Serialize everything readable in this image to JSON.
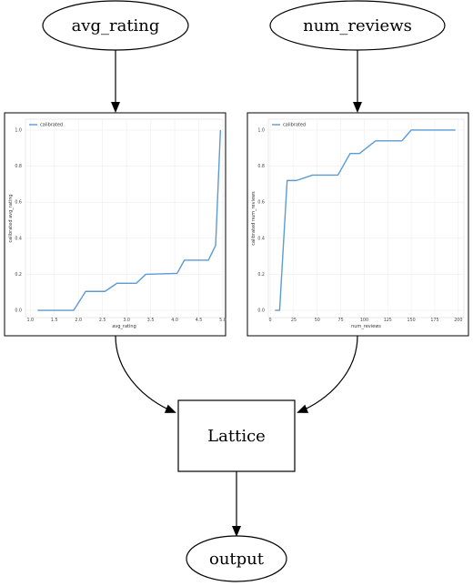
{
  "nodes": {
    "avg_rating": "avg_rating",
    "num_reviews": "num_reviews",
    "lattice": "Lattice",
    "output": "output"
  },
  "chart_data": [
    {
      "type": "line",
      "title": "",
      "xlabel": "avg_rating",
      "ylabel": "calibrated avg_rating",
      "xlim": [
        1.0,
        5.0
      ],
      "ylim": [
        0.0,
        1.0
      ],
      "xticks": [
        "1.0",
        "1.5",
        "2.0",
        "2.5",
        "3.0",
        "3.5",
        "4.0",
        "4.5",
        "5.0"
      ],
      "yticks": [
        "0.0",
        "0.2",
        "0.4",
        "0.6",
        "0.8",
        "1.0"
      ],
      "grid": true,
      "legend": "top-left",
      "series": [
        {
          "name": "calibrated",
          "color": "#5b9bd5",
          "x": [
            1.15,
            1.9,
            2.15,
            2.55,
            2.8,
            3.2,
            3.4,
            4.05,
            4.2,
            4.7,
            4.85,
            4.95
          ],
          "y": [
            0.0,
            0.0,
            0.105,
            0.105,
            0.15,
            0.15,
            0.2,
            0.205,
            0.278,
            0.278,
            0.36,
            1.0
          ]
        }
      ]
    },
    {
      "type": "line",
      "title": "",
      "xlabel": "num_reviews",
      "ylabel": "calibrated num_reviews",
      "xlim": [
        0,
        200
      ],
      "ylim": [
        0.0,
        1.0
      ],
      "xticks": [
        "0",
        "25",
        "50",
        "75",
        "100",
        "125",
        "150",
        "175",
        "200"
      ],
      "yticks": [
        "0.0",
        "0.2",
        "0.4",
        "0.6",
        "0.8",
        "1.0"
      ],
      "grid": true,
      "legend": "top-left",
      "series": [
        {
          "name": "calibrated",
          "color": "#5b9bd5",
          "x": [
            5,
            10,
            18,
            28,
            45,
            72,
            85,
            95,
            112,
            140,
            150,
            170,
            197
          ],
          "y": [
            0.0,
            0.0,
            0.72,
            0.72,
            0.75,
            0.75,
            0.87,
            0.87,
            0.94,
            0.94,
            1.0,
            1.0,
            1.0
          ]
        }
      ]
    }
  ]
}
